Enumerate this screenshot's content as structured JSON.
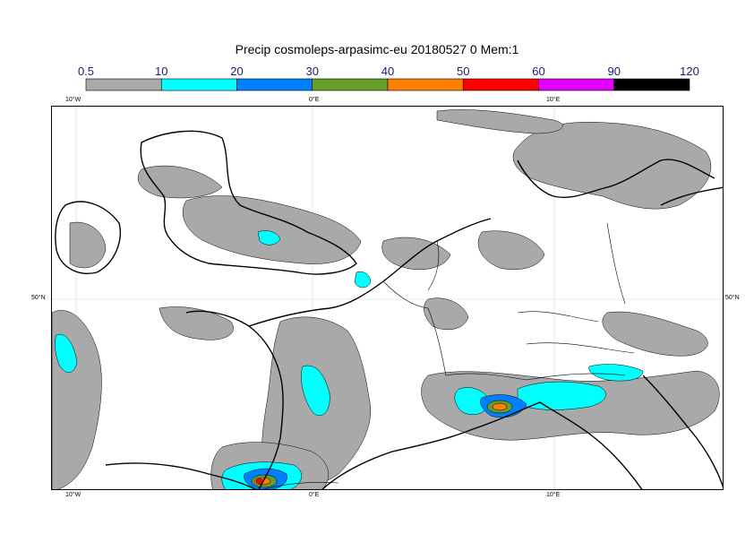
{
  "title": "Precip cosmoleps-arpasimc-eu 20180527 0 Mem:1",
  "colorbar": {
    "levels": [
      "0.5",
      "10",
      "20",
      "30",
      "40",
      "50",
      "60",
      "90",
      "120"
    ],
    "colors": [
      "#a9a9a9",
      "#00ffff",
      "#0080ff",
      "#66a02a",
      "#ff8000",
      "#ff0000",
      "#e100ff",
      "#000000"
    ]
  },
  "axes": {
    "top_lon_labels": [
      "10°W",
      "0°E",
      "10°E"
    ],
    "bottom_lon_labels": [
      "10°W",
      "0°E",
      "10°E"
    ],
    "left_lat_labels": [
      "50°N"
    ],
    "right_lat_labels": [
      "50°N"
    ]
  },
  "colors": {
    "coast": "#000000",
    "border": "#000000",
    "grid": "#cccccc",
    "precip_base": "#a9a9a9"
  }
}
